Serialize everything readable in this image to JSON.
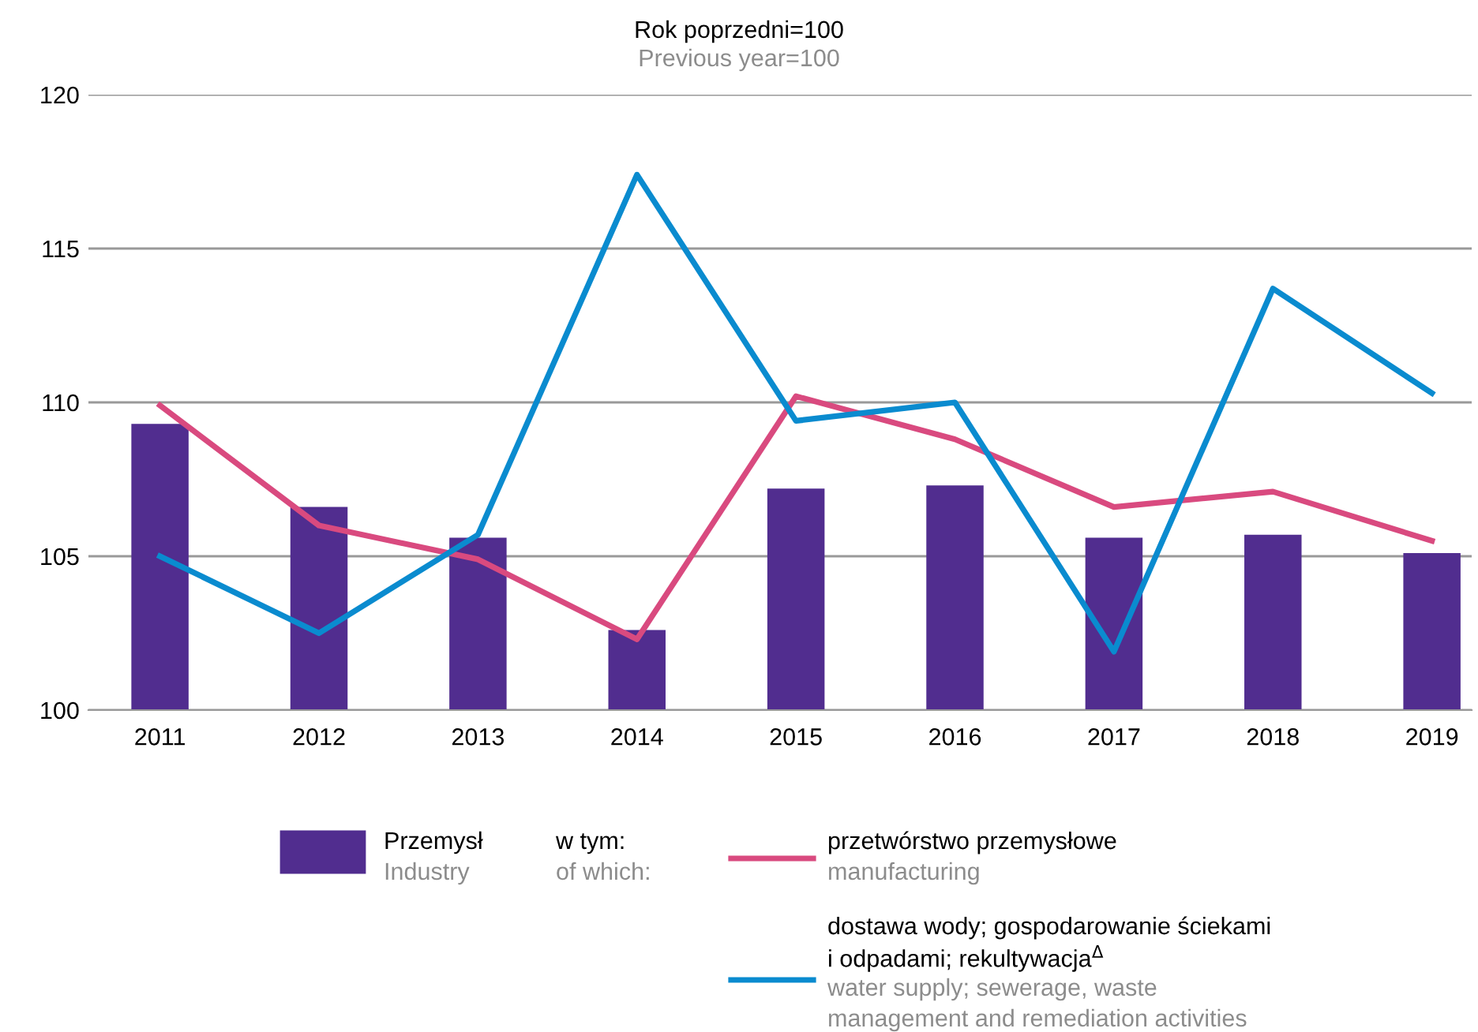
{
  "chart_data": {
    "type": "bar",
    "title": "Rok poprzedni=100",
    "subtitle": "Previous year=100",
    "categories": [
      "2011",
      "2012",
      "2013",
      "2014",
      "2015",
      "2016",
      "2017",
      "2018",
      "2019"
    ],
    "series": [
      {
        "name": "Przemysł\nIndustry",
        "color": "#512d8f",
        "values": [
          109.3,
          106.6,
          105.6,
          102.6,
          107.2,
          107.3,
          105.6,
          105.7,
          105.1
        ]
      },
      {
        "name": "przetwórstwo przemysłowe\nmanufacturing",
        "type": "line",
        "color": "#d94a7f",
        "values": [
          109.9,
          106.0,
          104.9,
          102.3,
          110.2,
          108.8,
          106.6,
          107.1,
          105.5
        ]
      },
      {
        "name": "dostawa wody; gospodarowanie ściekami\ni odpadami; rekultywacja$^{Δ}$\nwater supply; sewerage, waste\nmanagement and remediation activities",
        "type": "line",
        "color": "#0a8bcf",
        "values": [
          105.0,
          102.5,
          105.7,
          117.4,
          109.4,
          110.0,
          101.9,
          113.7,
          110.3
        ]
      }
    ],
    "annotations": [
      "w tym:\nof which:"
    ],
    "ylim": [
      100,
      120
    ],
    "yticks": [
      100,
      105,
      110,
      115,
      120
    ],
    "grid": "y",
    "legend": "bottom",
    "line_style": "solid",
    "marker": "none"
  }
}
